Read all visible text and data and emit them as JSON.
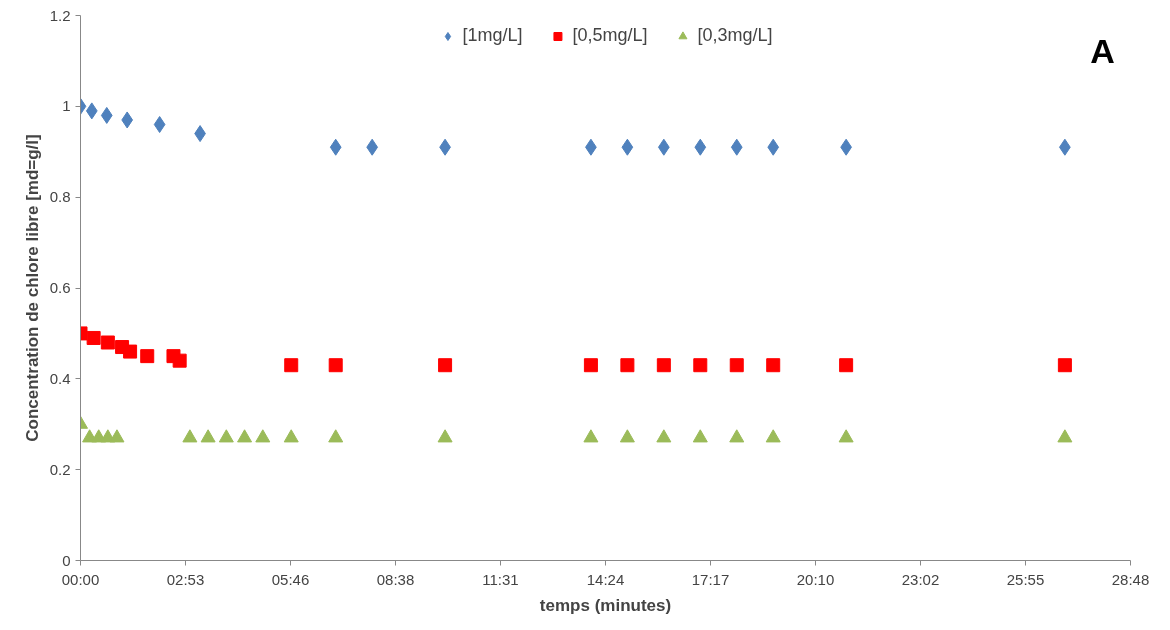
{
  "chart_data": {
    "type": "scatter",
    "xlabel": "temps (minutes)",
    "ylabel": "Concentration de chlore libre [md=g/l]",
    "annotations": [
      "A"
    ],
    "xlim": [
      0,
      28.8
    ],
    "xticks": [
      {
        "value": 0,
        "label": "00:00"
      },
      {
        "value": 2.88,
        "label": "02:53"
      },
      {
        "value": 5.76,
        "label": "05:46"
      },
      {
        "value": 8.64,
        "label": "08:38"
      },
      {
        "value": 11.52,
        "label": "11:31"
      },
      {
        "value": 14.4,
        "label": "14:24"
      },
      {
        "value": 17.28,
        "label": "17:17"
      },
      {
        "value": 20.16,
        "label": "20:10"
      },
      {
        "value": 23.04,
        "label": "23:02"
      },
      {
        "value": 25.92,
        "label": "25:55"
      },
      {
        "value": 28.8,
        "label": "28:48"
      }
    ],
    "ylim": [
      0,
      1.2
    ],
    "yticks": [
      0,
      0.2,
      0.4,
      0.6,
      0.8,
      1,
      1.2
    ],
    "grid": false,
    "legend": "top",
    "series": [
      {
        "name": "[1mg/L]",
        "color": "#4f81bd",
        "marker": "diamond",
        "x": [
          0,
          0.31,
          0.72,
          1.28,
          2.17,
          3.28,
          7.0,
          8.0,
          10.0,
          14.0,
          15.0,
          16.0,
          17.0,
          18.0,
          19.0,
          21.0,
          27.0
        ],
        "values": [
          1.0,
          0.99,
          0.98,
          0.97,
          0.96,
          0.94,
          0.91,
          0.91,
          0.91,
          0.91,
          0.91,
          0.91,
          0.91,
          0.91,
          0.91,
          0.91,
          0.91
        ]
      },
      {
        "name": "[0,5mg/L]",
        "color": "#ff0000",
        "marker": "square",
        "x": [
          0,
          0.36,
          0.75,
          1.14,
          1.36,
          1.83,
          2.55,
          2.72,
          5.78,
          7.0,
          10.0,
          14.0,
          15.0,
          16.0,
          17.0,
          18.0,
          19.0,
          21.0,
          27.0
        ],
        "values": [
          0.5,
          0.49,
          0.48,
          0.47,
          0.46,
          0.45,
          0.45,
          0.44,
          0.43,
          0.43,
          0.43,
          0.43,
          0.43,
          0.43,
          0.43,
          0.43,
          0.43,
          0.43,
          0.43
        ]
      },
      {
        "name": "[0,3mg/L]",
        "color": "#9bbb59",
        "marker": "triangle",
        "x": [
          0,
          0.25,
          0.5,
          0.75,
          1.0,
          3.0,
          3.5,
          4.0,
          4.5,
          5.0,
          5.78,
          7.0,
          10.0,
          14.0,
          15.0,
          16.0,
          17.0,
          18.0,
          19.0,
          21.0,
          27.0
        ],
        "values": [
          0.3,
          0.27,
          0.27,
          0.27,
          0.27,
          0.27,
          0.27,
          0.27,
          0.27,
          0.27,
          0.27,
          0.27,
          0.27,
          0.27,
          0.27,
          0.27,
          0.27,
          0.27,
          0.27,
          0.27,
          0.27
        ]
      }
    ]
  }
}
